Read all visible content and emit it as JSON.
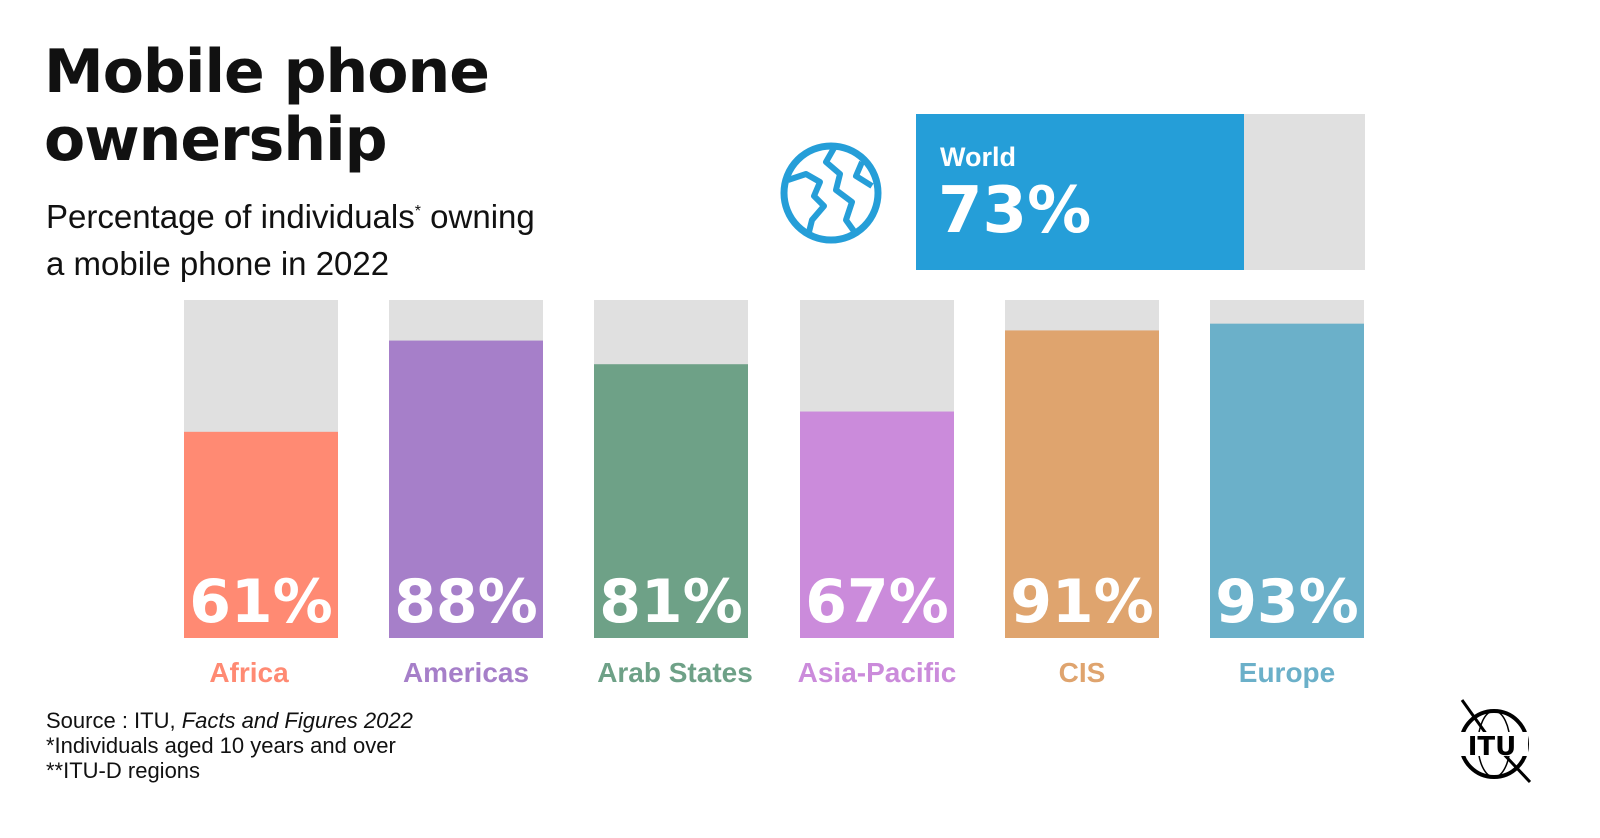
{
  "title": "Mobile phone ownership",
  "subtitle": {
    "part1": "Percentage of individuals",
    "sup": "*",
    "part2": " owning",
    "line2": "a mobile phone in 2022"
  },
  "world": {
    "label": "World",
    "value_label": "73%",
    "value": 73,
    "color": "#259ed8",
    "icon": "globe-icon"
  },
  "chart_data": {
    "type": "bar",
    "categories": [
      "Africa",
      "Americas",
      "Arab States",
      "Asia-Pacific",
      "CIS",
      "Europe"
    ],
    "values": [
      61,
      88,
      81,
      67,
      91,
      93
    ],
    "value_labels": [
      "61%",
      "88%",
      "81%",
      "67%",
      "91%",
      "93%"
    ],
    "colors": [
      "#ff8a73",
      "#a67fc9",
      "#6ea187",
      "#cb8bdb",
      "#dfa46e",
      "#6bb0c9"
    ],
    "background_color": "#e0e0e0",
    "ylim": [
      0,
      100
    ],
    "grid": false
  },
  "notes": {
    "source_prefix": "Source : ITU, ",
    "source_title": "Facts and Figures 2022",
    "note1": "*Individuals aged 10 years and over",
    "note2": "**ITU-D regions"
  },
  "logo": {
    "text": "ITU"
  }
}
